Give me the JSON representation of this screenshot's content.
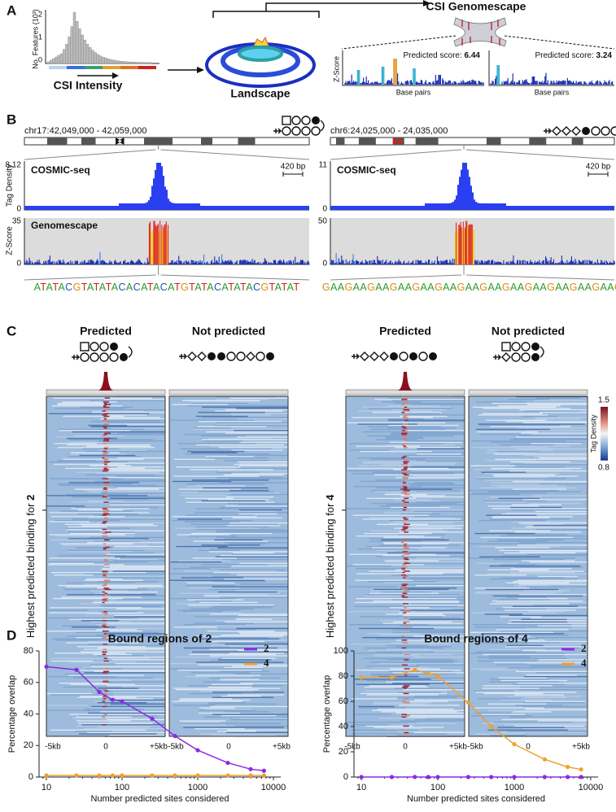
{
  "panels": {
    "a": {
      "label": "A",
      "hist_ylabel": "No. Features (10³)",
      "hist_yticks": [
        "2",
        "1",
        "0"
      ],
      "intensity_label": "CSI  Intensity",
      "landscape_label": "Landscape",
      "genomescape_title": "CSI Genomescape",
      "zscore_label": "Z-Score",
      "scores": [
        {
          "prefix": "Predicted score: ",
          "value": "6.44"
        },
        {
          "prefix": "Predicted score: ",
          "value": "3.24"
        }
      ],
      "base_pairs": [
        "Base pairs",
        "Base pairs"
      ]
    },
    "b": {
      "label": "B",
      "cosmic_title": "COSMIC-seq",
      "geno_title": "Genomescape",
      "tag_density": "Tag Density",
      "zscore": "Z-Score",
      "loci": [
        {
          "coords": "chr17:42,049,000 - 42,059,000",
          "cosmic_max": "8.12",
          "cosmic_zero": "0",
          "scale": "420 bp",
          "geno_max": "35",
          "geno_zero": "0",
          "sequence": "ATATACGTATATACACATACATGTATACATATACGTATAT"
        },
        {
          "coords": "chr6:24,025,000 - 24,035,000",
          "cosmic_max": "11",
          "cosmic_zero": "0",
          "scale": "420 bp",
          "geno_max": "50",
          "geno_zero": "0",
          "sequence": "GAAGAAGAAGAAGAAGAAGAAGAAGAAGAAGAAGAAGAAG"
        }
      ]
    },
    "c": {
      "label": "C",
      "xticks": [
        "-5kb",
        "0",
        "+5kb"
      ],
      "groups": [
        {
          "ylabel_prefix": "Highest predicted binding for ",
          "compound": "2",
          "columns": [
            "Predicted",
            "Not predicted"
          ]
        },
        {
          "ylabel_prefix": "Highest predicted binding for ",
          "compound": "4",
          "columns": [
            "Predicted",
            "Not predicted"
          ]
        }
      ],
      "colorbar": {
        "title": "Tag Density",
        "max": "1.5",
        "min": "0.8"
      }
    },
    "d": {
      "label": "D"
    }
  },
  "chart_data": [
    {
      "type": "line",
      "title": "Bound regions of 2",
      "x_label": "Number predicted sites considered",
      "y_label": "Percentage overlap",
      "x": [
        10,
        25,
        50,
        75,
        100,
        250,
        500,
        1000,
        2500,
        5000,
        7500
      ],
      "xscale": "log",
      "xlim": [
        8,
        12500
      ],
      "xticks": [
        10,
        100,
        1000,
        10000
      ],
      "ylim": [
        0,
        80
      ],
      "yticks": [
        0,
        20,
        40,
        60,
        80
      ],
      "legend": "upper right",
      "series": [
        {
          "name": "2",
          "color": "#8a2be2",
          "values": [
            70,
            68,
            54,
            49,
            48,
            37,
            26,
            17,
            9,
            5,
            4
          ]
        },
        {
          "name": "4",
          "color": "#f0a030",
          "values": [
            1,
            1,
            1,
            1,
            1,
            1,
            1,
            1,
            1,
            1,
            1
          ]
        }
      ]
    },
    {
      "type": "line",
      "title": "Bound regions of 4",
      "x_label": "Number predicted sites considered",
      "y_label": "Percentage overlap",
      "x": [
        10,
        25,
        50,
        75,
        100,
        250,
        500,
        1000,
        2500,
        5000,
        7500
      ],
      "xscale": "log",
      "xlim": [
        8,
        12500
      ],
      "xticks": [
        10,
        100,
        1000,
        10000
      ],
      "ylim": [
        0,
        100
      ],
      "yticks": [
        0,
        20,
        40,
        60,
        80,
        100
      ],
      "legend": "upper right",
      "series": [
        {
          "name": "2",
          "color": "#8a2be2",
          "values": [
            0,
            0,
            0,
            0,
            0,
            0,
            0,
            0,
            0,
            0,
            0
          ]
        },
        {
          "name": "4",
          "color": "#f0a030",
          "values": [
            79,
            79,
            85,
            82,
            80,
            59,
            40,
            26,
            14,
            8,
            6
          ]
        }
      ]
    }
  ]
}
